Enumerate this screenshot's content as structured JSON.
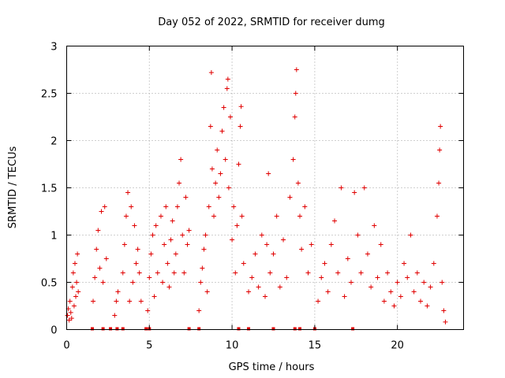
{
  "chart_data": {
    "type": "scatter",
    "title": "Day 052 of 2022, SRMTID for receiver dumg",
    "xlabel": "GPS time / hours",
    "ylabel": "SRMTID / TECUs",
    "xlim": [
      0,
      24
    ],
    "ylim": [
      0,
      3
    ],
    "x_ticks": [
      0,
      5,
      10,
      15,
      20
    ],
    "x_tick_labels": [
      "0",
      "5",
      "10",
      "15",
      "20"
    ],
    "y_ticks": [
      0,
      0.5,
      1,
      1.5,
      2,
      2.5,
      3
    ],
    "y_tick_labels": [
      "0",
      "0.5",
      "1",
      "1.5",
      "2",
      "2.5",
      "3"
    ],
    "grid": true,
    "marker": "+",
    "color": "#e00000",
    "series": [
      {
        "name": "SRMTID",
        "points": [
          [
            0.05,
            0.15
          ],
          [
            0.1,
            0.22
          ],
          [
            0.15,
            0.1
          ],
          [
            0.2,
            0.3
          ],
          [
            0.25,
            0.18
          ],
          [
            0.3,
            0.12
          ],
          [
            0.35,
            0.45
          ],
          [
            0.4,
            0.6
          ],
          [
            0.45,
            0.25
          ],
          [
            0.5,
            0.7
          ],
          [
            0.55,
            0.35
          ],
          [
            0.6,
            0.5
          ],
          [
            0.65,
            0.8
          ],
          [
            0.7,
            0.4
          ],
          [
            1.6,
            0.3
          ],
          [
            1.7,
            0.55
          ],
          [
            1.8,
            0.85
          ],
          [
            1.9,
            1.05
          ],
          [
            2.0,
            0.65
          ],
          [
            2.1,
            1.25
          ],
          [
            2.2,
            0.5
          ],
          [
            2.3,
            1.3
          ],
          [
            2.4,
            0.75
          ],
          [
            2.9,
            0.15
          ],
          [
            3.0,
            0.3
          ],
          [
            3.1,
            0.4
          ],
          [
            3.4,
            0.6
          ],
          [
            3.5,
            0.9
          ],
          [
            3.6,
            1.2
          ],
          [
            3.7,
            1.45
          ],
          [
            3.8,
            0.3
          ],
          [
            3.9,
            1.3
          ],
          [
            4.0,
            0.5
          ],
          [
            4.1,
            1.1
          ],
          [
            4.2,
            0.7
          ],
          [
            4.3,
            0.85
          ],
          [
            4.4,
            0.6
          ],
          [
            4.5,
            0.3
          ],
          [
            4.9,
            0.2
          ],
          [
            5.0,
            0.55
          ],
          [
            5.1,
            0.8
          ],
          [
            5.2,
            1.0
          ],
          [
            5.3,
            0.35
          ],
          [
            5.4,
            1.1
          ],
          [
            5.5,
            0.6
          ],
          [
            5.7,
            1.2
          ],
          [
            5.8,
            0.5
          ],
          [
            5.9,
            0.9
          ],
          [
            6.0,
            1.3
          ],
          [
            6.1,
            0.7
          ],
          [
            6.2,
            0.45
          ],
          [
            6.3,
            0.95
          ],
          [
            6.4,
            1.15
          ],
          [
            6.5,
            0.6
          ],
          [
            6.6,
            0.8
          ],
          [
            6.7,
            1.3
          ],
          [
            6.8,
            1.55
          ],
          [
            6.9,
            1.8
          ],
          [
            7.0,
            1.0
          ],
          [
            7.1,
            0.6
          ],
          [
            7.2,
            1.4
          ],
          [
            7.3,
            0.9
          ],
          [
            7.4,
            1.05
          ],
          [
            8.0,
            0.2
          ],
          [
            8.1,
            0.5
          ],
          [
            8.2,
            0.65
          ],
          [
            8.3,
            0.85
          ],
          [
            8.4,
            1.0
          ],
          [
            8.5,
            0.4
          ],
          [
            8.6,
            1.3
          ],
          [
            8.7,
            2.15
          ],
          [
            8.75,
            2.72
          ],
          [
            8.8,
            1.7
          ],
          [
            8.9,
            1.2
          ],
          [
            9.0,
            1.55
          ],
          [
            9.1,
            1.9
          ],
          [
            9.2,
            1.4
          ],
          [
            9.3,
            1.65
          ],
          [
            9.4,
            2.1
          ],
          [
            9.5,
            2.35
          ],
          [
            9.6,
            1.8
          ],
          [
            9.7,
            2.55
          ],
          [
            9.75,
            2.65
          ],
          [
            9.8,
            1.5
          ],
          [
            9.9,
            2.25
          ],
          [
            10.0,
            0.95
          ],
          [
            10.1,
            1.3
          ],
          [
            10.2,
            0.6
          ],
          [
            10.3,
            1.1
          ],
          [
            10.4,
            1.75
          ],
          [
            10.5,
            2.15
          ],
          [
            10.55,
            2.36
          ],
          [
            10.6,
            1.2
          ],
          [
            10.7,
            0.7
          ],
          [
            11.0,
            0.4
          ],
          [
            11.2,
            0.55
          ],
          [
            11.4,
            0.8
          ],
          [
            11.6,
            0.45
          ],
          [
            11.8,
            1.0
          ],
          [
            12.0,
            0.35
          ],
          [
            12.1,
            0.9
          ],
          [
            12.2,
            1.65
          ],
          [
            12.3,
            0.6
          ],
          [
            12.5,
            0.8
          ],
          [
            12.7,
            1.2
          ],
          [
            12.9,
            0.45
          ],
          [
            13.1,
            0.95
          ],
          [
            13.3,
            0.55
          ],
          [
            13.5,
            1.4
          ],
          [
            13.7,
            1.8
          ],
          [
            13.8,
            2.25
          ],
          [
            13.85,
            2.5
          ],
          [
            13.9,
            2.75
          ],
          [
            14.0,
            1.55
          ],
          [
            14.1,
            1.2
          ],
          [
            14.2,
            0.85
          ],
          [
            14.4,
            1.3
          ],
          [
            14.6,
            0.6
          ],
          [
            14.8,
            0.9
          ],
          [
            15.2,
            0.3
          ],
          [
            15.4,
            0.55
          ],
          [
            15.6,
            0.7
          ],
          [
            15.8,
            0.4
          ],
          [
            16.0,
            0.9
          ],
          [
            16.2,
            1.15
          ],
          [
            16.4,
            0.6
          ],
          [
            16.6,
            1.5
          ],
          [
            16.8,
            0.35
          ],
          [
            17.0,
            0.75
          ],
          [
            17.2,
            0.5
          ],
          [
            17.4,
            1.45
          ],
          [
            17.6,
            1.0
          ],
          [
            17.8,
            0.6
          ],
          [
            18.0,
            1.5
          ],
          [
            18.2,
            0.8
          ],
          [
            18.4,
            0.45
          ],
          [
            18.6,
            1.1
          ],
          [
            18.8,
            0.55
          ],
          [
            19.0,
            0.9
          ],
          [
            19.2,
            0.3
          ],
          [
            19.4,
            0.6
          ],
          [
            19.6,
            0.4
          ],
          [
            19.8,
            0.25
          ],
          [
            20.0,
            0.5
          ],
          [
            20.2,
            0.35
          ],
          [
            20.4,
            0.7
          ],
          [
            20.6,
            0.55
          ],
          [
            20.8,
            1.0
          ],
          [
            21.0,
            0.4
          ],
          [
            21.2,
            0.6
          ],
          [
            21.4,
            0.3
          ],
          [
            21.6,
            0.5
          ],
          [
            21.8,
            0.25
          ],
          [
            22.0,
            0.45
          ],
          [
            22.2,
            0.7
          ],
          [
            22.4,
            1.2
          ],
          [
            22.5,
            1.55
          ],
          [
            22.55,
            1.9
          ],
          [
            22.6,
            2.15
          ],
          [
            22.7,
            0.5
          ],
          [
            22.8,
            0.2
          ],
          [
            22.9,
            0.08
          ]
        ]
      }
    ],
    "zero_markers_x": [
      1.55,
      2.2,
      2.65,
      3.05,
      3.4,
      4.8,
      5.0,
      7.4,
      8.0,
      10.4,
      11.0,
      12.5,
      13.8,
      14.1,
      15.0,
      17.3
    ]
  }
}
